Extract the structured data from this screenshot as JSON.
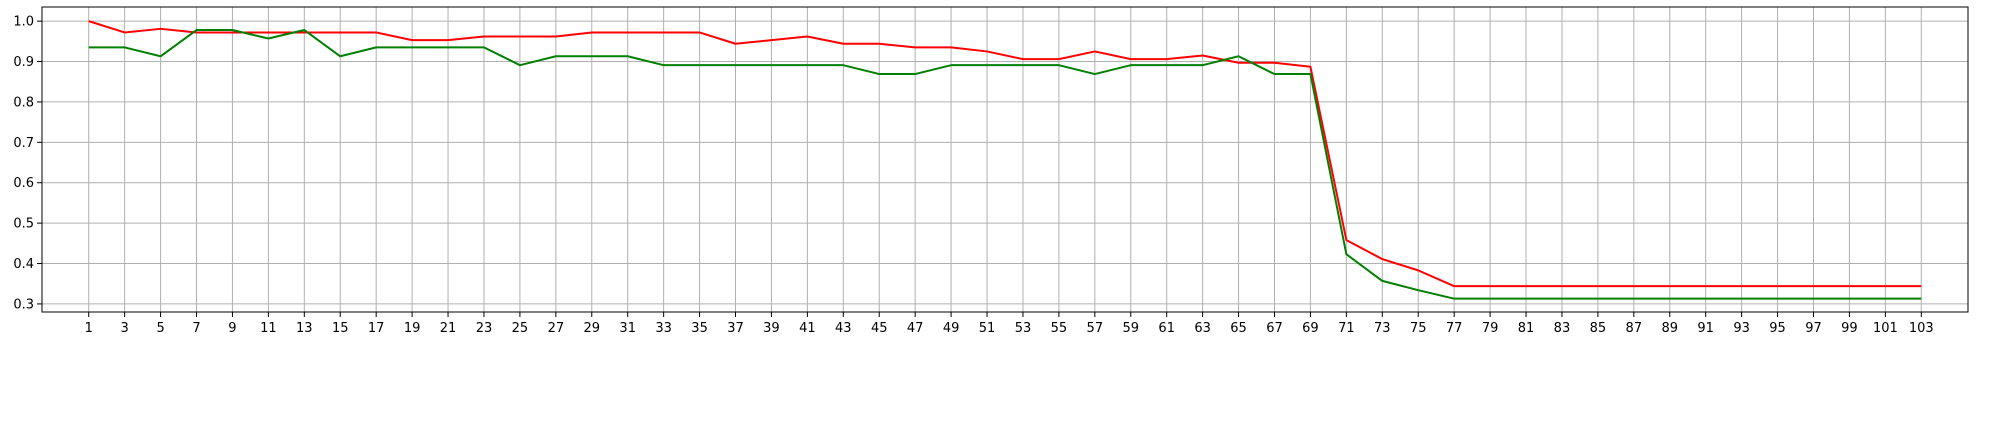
{
  "chart_data": {
    "type": "line",
    "title": "",
    "xlabel": "",
    "ylabel": "",
    "grid": true,
    "legend": "none",
    "xlim": [
      -1.6,
      105.6
    ],
    "ylim": [
      0.28,
      1.035
    ],
    "x_ticks": [
      1,
      3,
      5,
      7,
      9,
      11,
      13,
      15,
      17,
      19,
      21,
      23,
      25,
      27,
      29,
      31,
      33,
      35,
      37,
      39,
      41,
      43,
      45,
      47,
      49,
      51,
      53,
      55,
      57,
      59,
      61,
      63,
      65,
      67,
      69,
      71,
      73,
      75,
      77,
      79,
      81,
      83,
      85,
      87,
      89,
      91,
      93,
      95,
      97,
      99,
      101,
      103
    ],
    "y_ticks": [
      0.3,
      0.4,
      0.5,
      0.6,
      0.7,
      0.8,
      0.9,
      1.0
    ],
    "y_tick_labels": [
      "0.3",
      "0.4",
      "0.5",
      "0.6",
      "0.7",
      "0.8",
      "0.9",
      "1.0"
    ],
    "x": [
      1,
      3,
      5,
      7,
      9,
      11,
      13,
      15,
      17,
      19,
      21,
      23,
      25,
      27,
      29,
      31,
      33,
      35,
      37,
      39,
      41,
      43,
      45,
      47,
      49,
      51,
      53,
      55,
      57,
      59,
      61,
      63,
      65,
      67,
      69,
      71,
      73,
      75,
      77,
      79,
      81,
      83,
      85,
      87,
      89,
      91,
      93,
      95,
      97,
      99,
      101,
      103
    ],
    "series": [
      {
        "color": "#ff0000",
        "values": [
          1.0,
          0.972,
          0.981,
          0.972,
          0.972,
          0.972,
          0.972,
          0.972,
          0.972,
          0.953,
          0.953,
          0.962,
          0.962,
          0.962,
          0.972,
          0.972,
          0.972,
          0.972,
          0.944,
          0.953,
          0.962,
          0.944,
          0.944,
          0.935,
          0.935,
          0.925,
          0.906,
          0.906,
          0.925,
          0.906,
          0.906,
          0.915,
          0.897,
          0.897,
          0.887,
          0.458,
          0.411,
          0.383,
          0.344,
          0.344,
          0.344,
          0.344,
          0.344,
          0.344,
          0.344,
          0.344,
          0.344,
          0.344,
          0.344,
          0.344,
          0.344,
          0.344
        ]
      },
      {
        "color": "#008000",
        "values": [
          0.935,
          0.935,
          0.913,
          0.978,
          0.978,
          0.957,
          0.978,
          0.913,
          0.935,
          0.935,
          0.935,
          0.935,
          0.891,
          0.913,
          0.913,
          0.913,
          0.891,
          0.891,
          0.891,
          0.891,
          0.891,
          0.891,
          0.869,
          0.869,
          0.891,
          0.891,
          0.891,
          0.891,
          0.869,
          0.891,
          0.891,
          0.891,
          0.913,
          0.869,
          0.869,
          0.423,
          0.357,
          0.334,
          0.313,
          0.313,
          0.313,
          0.313,
          0.313,
          0.313,
          0.313,
          0.313,
          0.313,
          0.313,
          0.313,
          0.313,
          0.313,
          0.313
        ]
      }
    ]
  }
}
